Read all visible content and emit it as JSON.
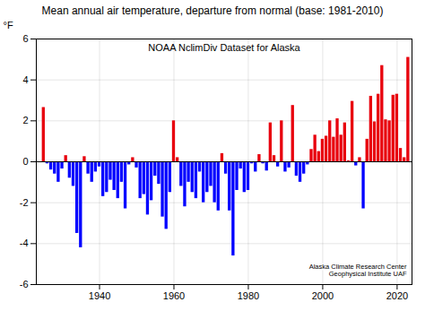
{
  "chart_data": {
    "type": "bar",
    "title": "Mean annual air temperature, departure from normal (base: 1981-2010)",
    "subtitle": "NOAA NclimDiv Dataset for Alaska",
    "y_label": "°F",
    "annotations": [
      "Alaska Climate Research Center\nGeophysical Institute UAF"
    ],
    "x": [
      1925,
      1926,
      1927,
      1928,
      1929,
      1930,
      1931,
      1932,
      1933,
      1934,
      1935,
      1936,
      1937,
      1938,
      1939,
      1940,
      1941,
      1942,
      1943,
      1944,
      1945,
      1946,
      1947,
      1948,
      1949,
      1950,
      1951,
      1952,
      1953,
      1954,
      1955,
      1956,
      1957,
      1958,
      1959,
      1960,
      1961,
      1962,
      1963,
      1964,
      1965,
      1966,
      1967,
      1968,
      1969,
      1970,
      1971,
      1972,
      1973,
      1974,
      1975,
      1976,
      1977,
      1978,
      1979,
      1980,
      1981,
      1982,
      1983,
      1984,
      1985,
      1986,
      1987,
      1988,
      1989,
      1990,
      1991,
      1992,
      1993,
      1994,
      1995,
      1996,
      1997,
      1998,
      1999,
      2000,
      2001,
      2002,
      2003,
      2004,
      2005,
      2006,
      2007,
      2008,
      2009,
      2010,
      2011,
      2012,
      2013,
      2014,
      2015,
      2016,
      2017,
      2018,
      2019,
      2020,
      2021,
      2022,
      2023
    ],
    "values": [
      2.65,
      -0.1,
      -0.4,
      -0.6,
      -1.0,
      -0.35,
      0.3,
      -0.8,
      -1.2,
      -3.5,
      -4.2,
      0.25,
      -0.6,
      -1.0,
      -0.5,
      -0.25,
      -1.7,
      -1.5,
      -0.9,
      -1.4,
      -1.8,
      -1.0,
      -2.3,
      -0.15,
      0.2,
      -0.3,
      -1.8,
      -1.6,
      -2.6,
      -1.9,
      -0.7,
      -1.1,
      -2.7,
      -3.3,
      -1.5,
      2.0,
      0.2,
      -1.2,
      -2.2,
      -1.0,
      -1.5,
      -1.8,
      -0.5,
      -2.0,
      -1.5,
      -1.2,
      -2.0,
      -2.4,
      0.4,
      -0.6,
      -2.4,
      -4.6,
      -1.4,
      -0.35,
      -1.5,
      -1.4,
      -0.1,
      -0.5,
      0.35,
      -0.1,
      -0.45,
      1.9,
      0.3,
      -0.25,
      2.0,
      -0.5,
      -0.3,
      2.75,
      -0.7,
      -1.0,
      -0.6,
      -0.15,
      0.6,
      1.3,
      0.5,
      1.1,
      1.25,
      2.0,
      1.2,
      2.1,
      1.3,
      1.9,
      0.05,
      2.95,
      -0.2,
      0.2,
      -2.3,
      1.1,
      3.2,
      1.95,
      3.3,
      4.7,
      2.05,
      2.0,
      3.25,
      3.3,
      0.65,
      0.2,
      5.1
    ],
    "colors": [
      "#e8000d",
      "#0000ff",
      "#0000ff",
      "#0000ff",
      "#0000ff",
      "#0000ff",
      "#e8000d",
      "#0000ff",
      "#0000ff",
      "#0000ff",
      "#0000ff",
      "#e8000d",
      "#0000ff",
      "#0000ff",
      "#0000ff",
      "#0000ff",
      "#0000ff",
      "#0000ff",
      "#0000ff",
      "#0000ff",
      "#0000ff",
      "#0000ff",
      "#0000ff",
      "#0000ff",
      "#e8000d",
      "#0000ff",
      "#0000ff",
      "#0000ff",
      "#0000ff",
      "#0000ff",
      "#0000ff",
      "#0000ff",
      "#0000ff",
      "#0000ff",
      "#0000ff",
      "#e8000d",
      "#e8000d",
      "#0000ff",
      "#0000ff",
      "#0000ff",
      "#0000ff",
      "#0000ff",
      "#0000ff",
      "#0000ff",
      "#0000ff",
      "#0000ff",
      "#0000ff",
      "#0000ff",
      "#e8000d",
      "#0000ff",
      "#0000ff",
      "#0000ff",
      "#0000ff",
      "#0000ff",
      "#0000ff",
      "#0000ff",
      "#0000ff",
      "#0000ff",
      "#e8000d",
      "#0000ff",
      "#0000ff",
      "#e8000d",
      "#e8000d",
      "#0000ff",
      "#e8000d",
      "#0000ff",
      "#0000ff",
      "#e8000d",
      "#0000ff",
      "#0000ff",
      "#0000ff",
      "#0000ff",
      "#e8000d",
      "#e8000d",
      "#e8000d",
      "#e8000d",
      "#e8000d",
      "#e8000d",
      "#e8000d",
      "#e8000d",
      "#e8000d",
      "#e8000d",
      "#e8000d",
      "#e8000d",
      "#0000ff",
      "#e8000d",
      "#0000ff",
      "#e8000d",
      "#e8000d",
      "#e8000d",
      "#e8000d",
      "#e8000d",
      "#e8000d",
      "#e8000d",
      "#e8000d",
      "#e8000d",
      "#e8000d",
      "#e8000d",
      "#e8000d"
    ],
    "xlim": [
      1923,
      2024
    ],
    "xticks": [
      1940,
      1960,
      1980,
      2000,
      2020
    ],
    "ylim": [
      -6,
      6
    ],
    "yticks": [
      -6,
      -4,
      -2,
      0,
      2,
      4,
      6
    ],
    "grid": true
  }
}
